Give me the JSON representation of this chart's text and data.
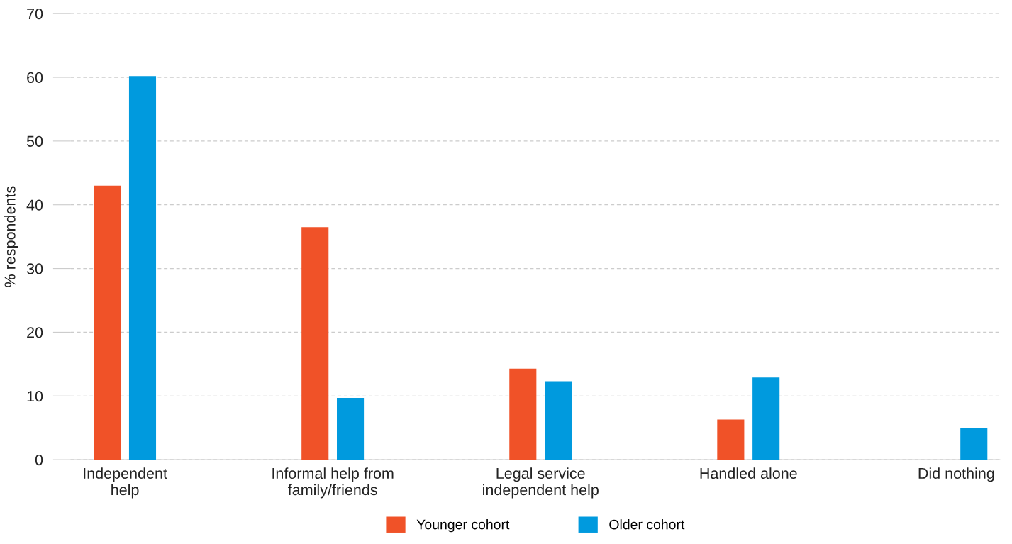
{
  "chart_data": {
    "type": "bar",
    "ylabel": "% respondents",
    "categories": [
      "Independent\nhelp",
      "Informal help from\nfamily/friends",
      "Legal service\nindependent help",
      "Handled alone",
      "Did nothing"
    ],
    "series": [
      {
        "name": "Younger cohort",
        "color": "#f05228",
        "values": [
          43,
          36.5,
          14.3,
          6.3,
          0
        ]
      },
      {
        "name": "Older cohort",
        "color": "#009ade",
        "values": [
          60.2,
          9.7,
          12.3,
          12.9,
          5
        ]
      }
    ],
    "ylim": [
      0,
      70
    ],
    "yticks": [
      0,
      10,
      20,
      30,
      40,
      50,
      60,
      70
    ],
    "grid": "y",
    "legend": "bottom"
  }
}
